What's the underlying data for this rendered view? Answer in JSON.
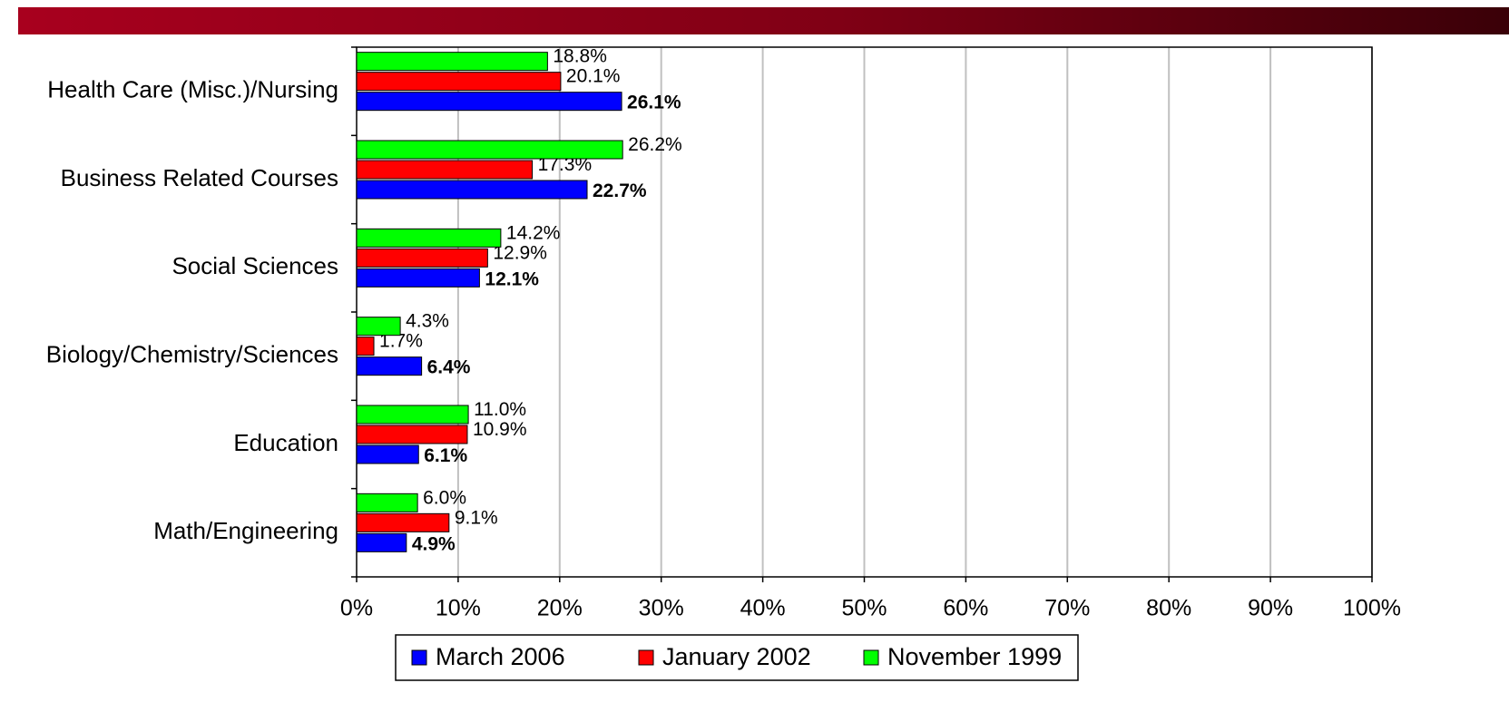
{
  "chart_data": {
    "type": "bar",
    "orientation": "horizontal",
    "categories": [
      "Health Care (Misc.)/Nursing",
      "Business Related Courses",
      "Social Sciences",
      "Biology/Chemistry/Sciences",
      "Education",
      "Math/Engineering"
    ],
    "series": [
      {
        "name": "March 2006",
        "color": "#0000ff",
        "values": [
          26.1,
          22.7,
          12.1,
          6.4,
          6.1,
          4.9
        ],
        "value_labels": [
          "26.1%",
          "22.7%",
          "12.1%",
          "6.4%",
          "6.1%",
          "4.9%"
        ]
      },
      {
        "name": "January 2002",
        "color": "#ff0000",
        "values": [
          20.1,
          17.3,
          12.9,
          1.7,
          10.9,
          9.1
        ],
        "value_labels": [
          "20.1%",
          "17.3%",
          "12.9%",
          "1.7%",
          "10.9%",
          "9.1%"
        ]
      },
      {
        "name": "November 1999",
        "color": "#00ff00",
        "values": [
          18.8,
          26.2,
          14.2,
          4.3,
          11.0,
          6.0
        ],
        "value_labels": [
          "18.8%",
          "26.2%",
          "14.2%",
          "4.3%",
          "11.0%",
          "6.0%"
        ]
      }
    ],
    "xlim": [
      0,
      100
    ],
    "xticks": [
      {
        "value": 0,
        "label": "0%"
      },
      {
        "value": 10,
        "label": "10%"
      },
      {
        "value": 20,
        "label": "20%"
      },
      {
        "value": 30,
        "label": "30%"
      },
      {
        "value": 40,
        "label": "40%"
      },
      {
        "value": 50,
        "label": "50%"
      },
      {
        "value": 60,
        "label": "60%"
      },
      {
        "value": 70,
        "label": "70%"
      },
      {
        "value": 80,
        "label": "80%"
      },
      {
        "value": 90,
        "label": "90%"
      },
      {
        "value": 100,
        "label": "100%"
      }
    ],
    "grid": true,
    "legend": "bottom"
  }
}
